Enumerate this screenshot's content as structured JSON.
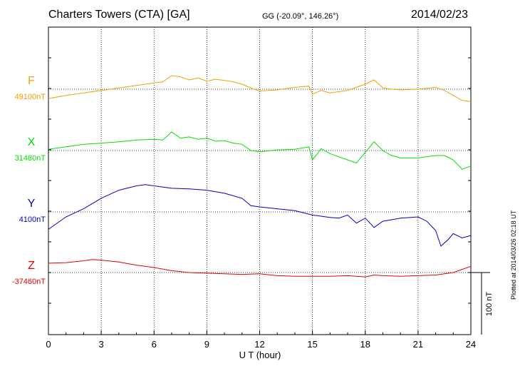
{
  "header": {
    "title": "Charters Towers (CTA)  [GA]",
    "coords": "GG (-20.09°, 146.26°)",
    "date": "2014/02/23"
  },
  "footer": {
    "plotted": "Plotted at 2014/03/26 02:18 UT"
  },
  "scale_bar": {
    "label": "100 nT",
    "value_nT": 100
  },
  "colors": {
    "F": "#f0a000",
    "X": "#00e000",
    "Y": "#0000c8",
    "Z": "#e00000"
  },
  "chart_data": {
    "type": "line",
    "xlabel": "U T (hour)",
    "xlim": [
      0,
      24
    ],
    "xticks": [
      "0",
      "3",
      "6",
      "9",
      "12",
      "15",
      "18",
      "21",
      "24"
    ],
    "units_note": "each trace plotted as deviation (nT) from its baseline; 100 nT scale bar",
    "series": [
      {
        "name": "F",
        "baseline_label": "49100nT",
        "x": [
          0,
          1,
          2,
          3,
          4,
          5,
          6,
          6.5,
          7,
          7.5,
          8,
          8.5,
          9,
          9.5,
          10,
          10.5,
          11,
          11.5,
          12,
          13,
          14,
          14.8,
          15,
          15.5,
          16,
          17,
          18,
          18.5,
          19,
          19.5,
          20,
          21,
          22,
          22.5,
          23,
          23.5,
          24
        ],
        "y": [
          -15,
          -10,
          -6,
          -2,
          2,
          6,
          10,
          12,
          22,
          20,
          15,
          18,
          13,
          16,
          14,
          12,
          8,
          2,
          -3,
          -1,
          3,
          5,
          -8,
          -2,
          -6,
          -2,
          8,
          15,
          2,
          0,
          -1,
          0,
          3,
          -2,
          -10,
          -18,
          -20
        ]
      },
      {
        "name": "X",
        "baseline_label": "31480nT",
        "x": [
          0,
          1,
          2,
          3,
          4,
          5,
          6,
          6.5,
          7,
          7.5,
          8,
          8.5,
          9,
          9.5,
          10,
          10.5,
          11,
          11.5,
          12,
          13,
          14,
          14.8,
          15,
          15.5,
          16,
          17,
          17.5,
          18,
          18.5,
          19,
          19.5,
          20,
          21,
          22,
          22.5,
          23,
          23.5,
          24
        ],
        "y": [
          2,
          6,
          10,
          12,
          14,
          17,
          18,
          17,
          30,
          20,
          22,
          18,
          20,
          15,
          16,
          12,
          10,
          0,
          -2,
          1,
          2,
          6,
          -15,
          3,
          -5,
          -15,
          -20,
          -3,
          14,
          0,
          -8,
          -12,
          -12,
          -8,
          -8,
          -15,
          -30,
          -25
        ]
      },
      {
        "name": "Y",
        "baseline_label": "4100nT",
        "x": [
          0,
          1,
          2,
          3,
          4,
          5,
          5.5,
          6,
          7,
          8,
          9,
          10,
          11,
          11.5,
          12,
          13,
          14,
          15,
          16,
          16.5,
          17,
          17.5,
          18,
          18.5,
          19,
          20,
          21,
          21.5,
          22,
          22.3,
          22.7,
          23,
          23.5,
          24
        ],
        "y": [
          -28,
          -8,
          5,
          22,
          35,
          42,
          44,
          42,
          38,
          37,
          35,
          30,
          22,
          10,
          8,
          5,
          2,
          -5,
          -9,
          -10,
          -5,
          -18,
          -10,
          -25,
          -15,
          -10,
          -8,
          -15,
          -30,
          -55,
          -45,
          -35,
          -42,
          -38
        ]
      },
      {
        "name": "Z",
        "baseline_label": "-37460nT",
        "x": [
          0,
          1,
          2,
          2.5,
          3,
          4,
          5,
          6,
          7,
          8,
          9,
          10,
          11,
          12,
          13,
          14,
          15,
          16,
          17,
          18,
          18.5,
          19,
          20,
          21,
          22,
          22.5,
          23,
          23.5,
          24
        ],
        "y": [
          15,
          16,
          19,
          21,
          20,
          17,
          12,
          8,
          3,
          0,
          -1,
          -2,
          -3,
          -2,
          -5,
          -6,
          -6,
          -6,
          -5,
          -7,
          -4,
          -5,
          -6,
          -5,
          -4,
          -2,
          0,
          5,
          10
        ]
      }
    ]
  }
}
